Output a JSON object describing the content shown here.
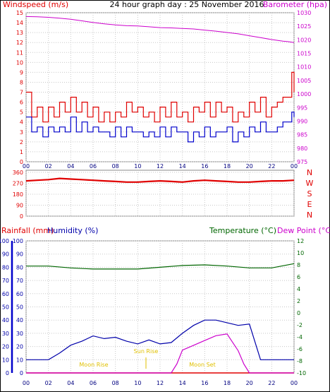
{
  "header": {
    "windspeed_label": "Windspeed (m/s)",
    "title": "24 hour graph day : 25 November 2016",
    "barometer_label": "Barometer (hpa)"
  },
  "colors": {
    "wind": "#e00000",
    "gust": "#e00000",
    "avg": "#0000cc",
    "baro": "#cc00cc",
    "humidity": "#0000aa",
    "temperature": "#006600",
    "dewpoint": "#cc00cc",
    "rain": "#e00000",
    "grid": "#c8c8c8",
    "sun": "#e0c000"
  },
  "x_labels": [
    "00",
    "02",
    "04",
    "06",
    "08",
    "10",
    "12",
    "14",
    "16",
    "18",
    "20",
    "22",
    "00"
  ],
  "direction_labels": [
    "N",
    "W",
    "S",
    "E",
    "N"
  ],
  "labels_bottom": {
    "rainfall": "Rainfall (mm)",
    "humidity": "Humidity (%)",
    "temperature": "Temperature (°C)",
    "dewpoint": "Dew Point (°C)"
  },
  "events": {
    "moon_rise": "Moon Rise",
    "sun_rise": "Sun Rise",
    "moon_set": "Moon Set"
  },
  "chart_data": [
    {
      "type": "line",
      "xlabel": "",
      "ylabel": "Windspeed (m/s)",
      "y2label": "Barometer (hpa)",
      "xlim": [
        0,
        24
      ],
      "ylim": [
        0,
        15
      ],
      "y2lim": [
        975,
        1030
      ],
      "yticks": [
        0,
        1,
        2,
        3,
        4,
        5,
        6,
        7,
        8,
        9,
        10,
        11,
        12,
        13,
        14,
        15
      ],
      "y2ticks": [
        975,
        980,
        985,
        990,
        995,
        1000,
        1005,
        1010,
        1015,
        1020,
        1025,
        1030
      ],
      "series": [
        {
          "x": [
            0,
            1,
            2,
            3,
            4,
            5,
            6,
            7,
            8,
            9,
            10,
            11,
            12,
            13,
            14,
            15,
            16,
            17,
            18,
            19,
            20,
            21,
            22,
            23,
            23.5,
            24
          ],
          "values": [
            1028.6,
            1028.5,
            1028.3,
            1028,
            1027.6,
            1027,
            1026.4,
            1025.9,
            1025.5,
            1025.2,
            1025.1,
            1024.8,
            1024.5,
            1024.4,
            1024.2,
            1024.0,
            1023.6,
            1023.2,
            1022.7,
            1022.2,
            1021.5,
            1020.8,
            1020.1,
            1019.5,
            1019.3,
            1019.0
          ]
        },
        {
          "x": [
            0,
            0.5,
            1,
            1.5,
            2,
            2.5,
            3,
            3.5,
            4,
            4.5,
            5,
            5.5,
            6,
            6.5,
            7,
            7.5,
            8,
            8.5,
            9,
            9.5,
            10,
            10.5,
            11,
            11.5,
            12,
            12.5,
            13,
            13.5,
            14,
            14.5,
            15,
            15.5,
            16,
            16.5,
            17,
            17.5,
            18,
            18.5,
            19,
            19.5,
            20,
            20.5,
            21,
            21.5,
            22,
            22.5,
            23,
            23.5,
            23.8,
            24
          ],
          "values": [
            7,
            4.5,
            5.5,
            4,
            5.5,
            4.5,
            6,
            5,
            6.5,
            5,
            6,
            4.5,
            5.5,
            4,
            5,
            4,
            5,
            4.5,
            6,
            5,
            5.5,
            4.5,
            5,
            4,
            5.5,
            4.5,
            6,
            4.5,
            5,
            4,
            5.5,
            5,
            6,
            4.5,
            6,
            5,
            5.5,
            4,
            5,
            4.5,
            6,
            5,
            6.5,
            4.5,
            5.5,
            6,
            6.5,
            6.5,
            9,
            7
          ]
        },
        {
          "x": [
            0,
            0.5,
            1,
            1.5,
            2,
            2.5,
            3,
            3.5,
            4,
            4.5,
            5,
            5.5,
            6,
            6.5,
            7,
            7.5,
            8,
            8.5,
            9,
            9.5,
            10,
            10.5,
            11,
            11.5,
            12,
            12.5,
            13,
            13.5,
            14,
            14.5,
            15,
            15.5,
            16,
            16.5,
            17,
            17.5,
            18,
            18.5,
            19,
            19.5,
            20,
            20.5,
            21,
            21.5,
            22,
            22.5,
            23,
            23.5,
            23.8,
            24
          ],
          "values": [
            4.5,
            3,
            3.5,
            2.5,
            3.5,
            3,
            3.5,
            3,
            4.5,
            3,
            4,
            3,
            3.5,
            3,
            3,
            2.5,
            3.5,
            2.5,
            3.5,
            3,
            3,
            2.5,
            3,
            2.5,
            3.5,
            2.5,
            3.5,
            3,
            3,
            2,
            3,
            2.5,
            3.5,
            2.5,
            3,
            3,
            3.5,
            2,
            3,
            2.5,
            3.5,
            3,
            4,
            3,
            3,
            3.5,
            4,
            4,
            5,
            4.5
          ]
        }
      ]
    },
    {
      "type": "scatter",
      "xlim": [
        0,
        24
      ],
      "ylim": [
        0,
        360
      ],
      "yticks": [
        0,
        45,
        90,
        135,
        180,
        225,
        270,
        315,
        360
      ],
      "series": [
        {
          "x": [
            0,
            1,
            2,
            3,
            4,
            5,
            6,
            7,
            8,
            9,
            10,
            11,
            12,
            13,
            14,
            15,
            16,
            17,
            18,
            19,
            20,
            21,
            22,
            23,
            24
          ],
          "values": [
            290,
            295,
            300,
            310,
            305,
            300,
            295,
            290,
            285,
            280,
            280,
            285,
            290,
            285,
            280,
            290,
            295,
            290,
            285,
            280,
            280,
            285,
            290,
            290,
            295
          ]
        }
      ]
    },
    {
      "type": "line",
      "xlim": [
        0,
        24
      ],
      "ylim": [
        0,
        100
      ],
      "y2lim": [
        -10,
        12
      ],
      "yticks": [
        0,
        10,
        20,
        30,
        40,
        50,
        60,
        70,
        80,
        90,
        100
      ],
      "y2ticks": [
        -10,
        -8,
        -6,
        -4,
        -2,
        0,
        2,
        4,
        6,
        8,
        10,
        12
      ],
      "series": [
        {
          "x": [
            0,
            2,
            3,
            4,
            5,
            6,
            7,
            8,
            9,
            10,
            11,
            12,
            13,
            14,
            15,
            16,
            17,
            18,
            19,
            20,
            21,
            24
          ],
          "values": [
            10,
            10,
            15,
            21,
            24,
            28,
            26,
            27,
            24,
            22,
            25,
            22,
            23,
            30,
            36,
            40,
            40,
            38,
            36,
            37,
            10,
            10
          ]
        },
        {
          "x": [
            0,
            2,
            4,
            6,
            8,
            10,
            12,
            14,
            16,
            18,
            20,
            22,
            24
          ],
          "values": [
            7.8,
            7.8,
            7.5,
            7.3,
            7.3,
            7.3,
            7.6,
            7.9,
            8.0,
            7.8,
            7.5,
            7.5,
            8.2
          ]
        },
        {
          "x": [
            0,
            13,
            13.5,
            14,
            15,
            16,
            17,
            18,
            19,
            19.5,
            20,
            24
          ],
          "values": [
            -10,
            -10,
            -8.5,
            -6.2,
            -5.4,
            -4.6,
            -3.8,
            -3.5,
            -6.3,
            -8.5,
            -10,
            -10
          ]
        },
        {
          "x": [
            0,
            24
          ],
          "values": [
            0,
            0
          ]
        }
      ]
    }
  ]
}
